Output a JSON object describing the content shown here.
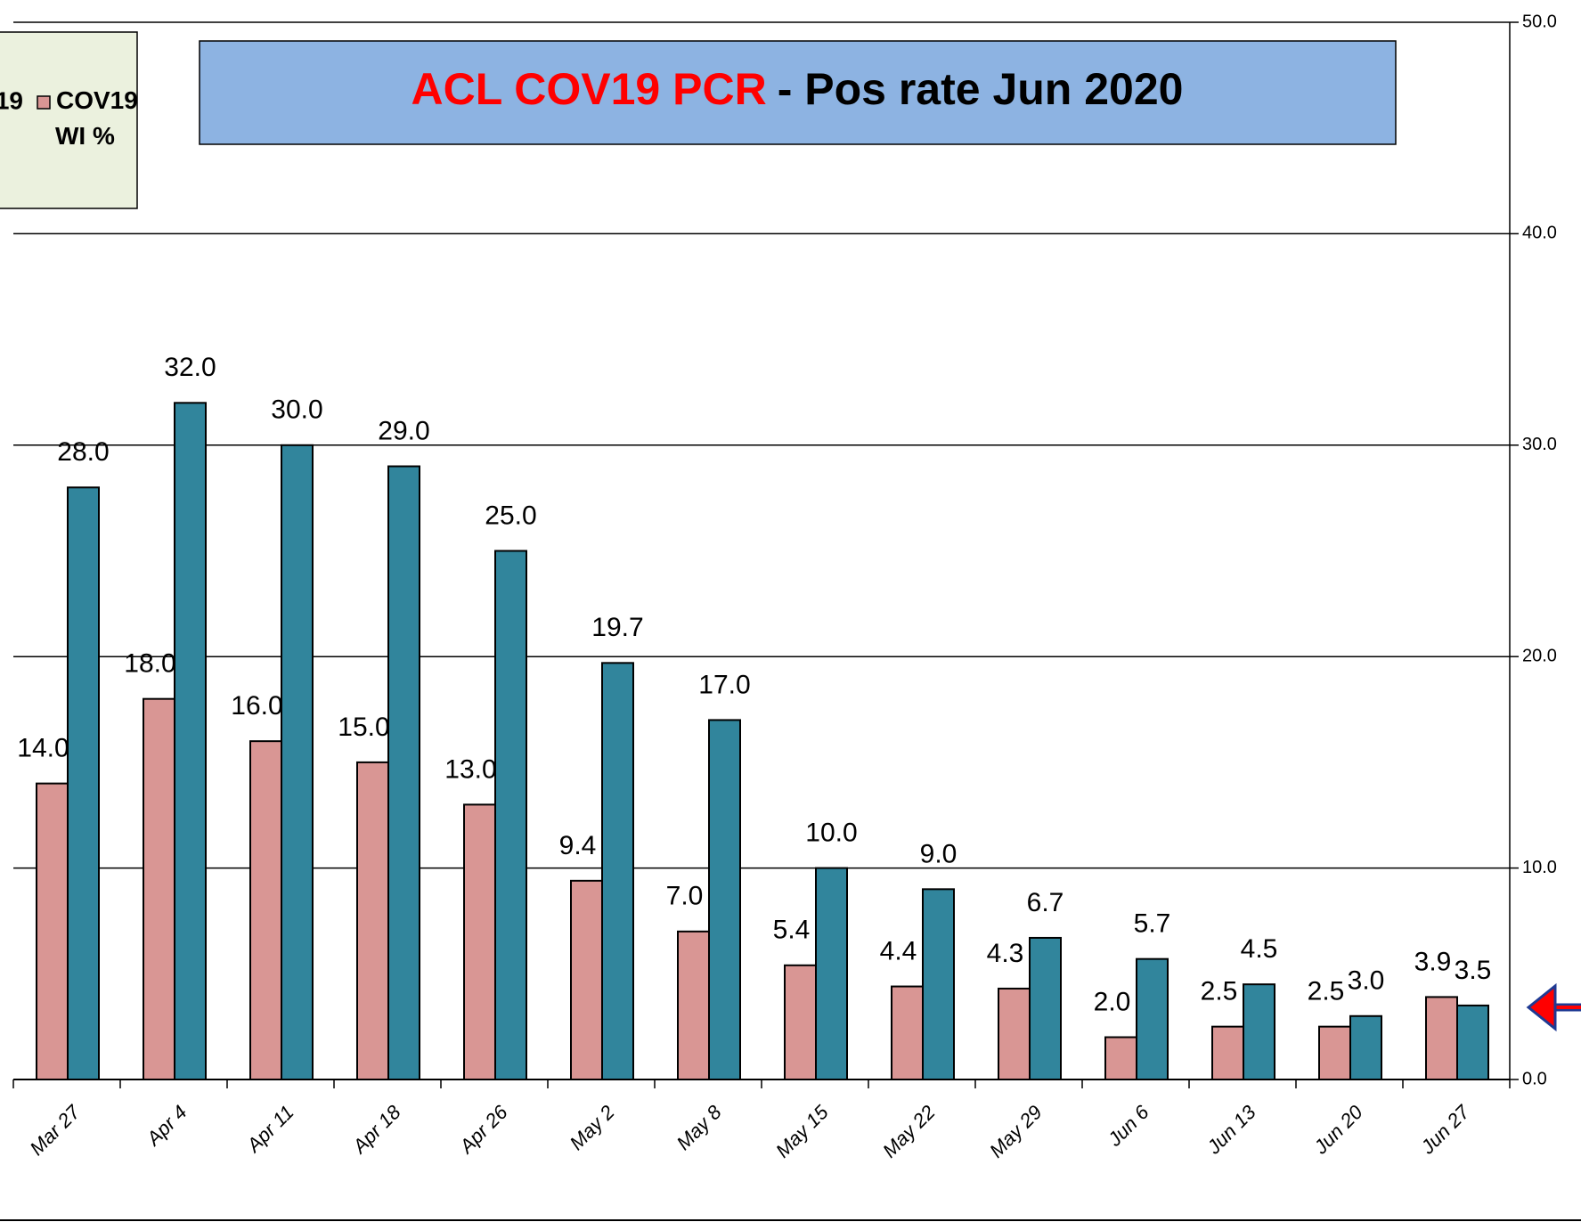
{
  "chart_data": {
    "type": "bar",
    "title": [
      "ACL COV19 PCR",
      "-  Pos rate Jun 2020"
    ],
    "categories": [
      "Mar 27",
      "Apr 4",
      "Apr 11",
      "Apr 18",
      "Apr 26",
      "May 2",
      "May 8",
      "May 15",
      "May 22",
      "May 29",
      "Jun 6",
      "Jun 13",
      "Jun 20",
      "Jun 27"
    ],
    "series": [
      {
        "name": "COV19 WI %",
        "color": "#d99694",
        "values": [
          14,
          18,
          16,
          15,
          13,
          9.4,
          7,
          5.4,
          4.4,
          4.3,
          2,
          2.5,
          2.5,
          3.9
        ],
        "value_labels": [
          "14.0",
          "18.0",
          "16.0",
          "15.0",
          "13.0",
          "9.4",
          "7.0",
          "5.4",
          "4.4",
          "4.3",
          "2.0",
          "2.5",
          "2.5",
          "3.9"
        ]
      },
      {
        "name": "19",
        "color": "#31859c",
        "values": [
          28,
          32,
          30,
          29,
          25,
          19.7,
          17,
          10,
          9,
          6.7,
          5.7,
          4.5,
          3.0,
          3.5
        ],
        "value_labels": [
          "28.0",
          "32.0",
          "30.0",
          "29.0",
          "25.0",
          "19.7",
          "17.0",
          "10.0",
          "9.0",
          "6.7",
          "5.7",
          "4.5",
          "3.0",
          "3.5"
        ]
      }
    ],
    "ylim": [
      0,
      50
    ],
    "yticks": [
      {
        "value": 0,
        "label": "0.0"
      },
      {
        "value": 10,
        "label": "10.0"
      },
      {
        "value": 20,
        "label": "20.0"
      },
      {
        "value": 30,
        "label": "30.0"
      },
      {
        "value": 40,
        "label": "40.0"
      },
      {
        "value": 50,
        "label": "50.0"
      }
    ],
    "grid": true
  }
}
